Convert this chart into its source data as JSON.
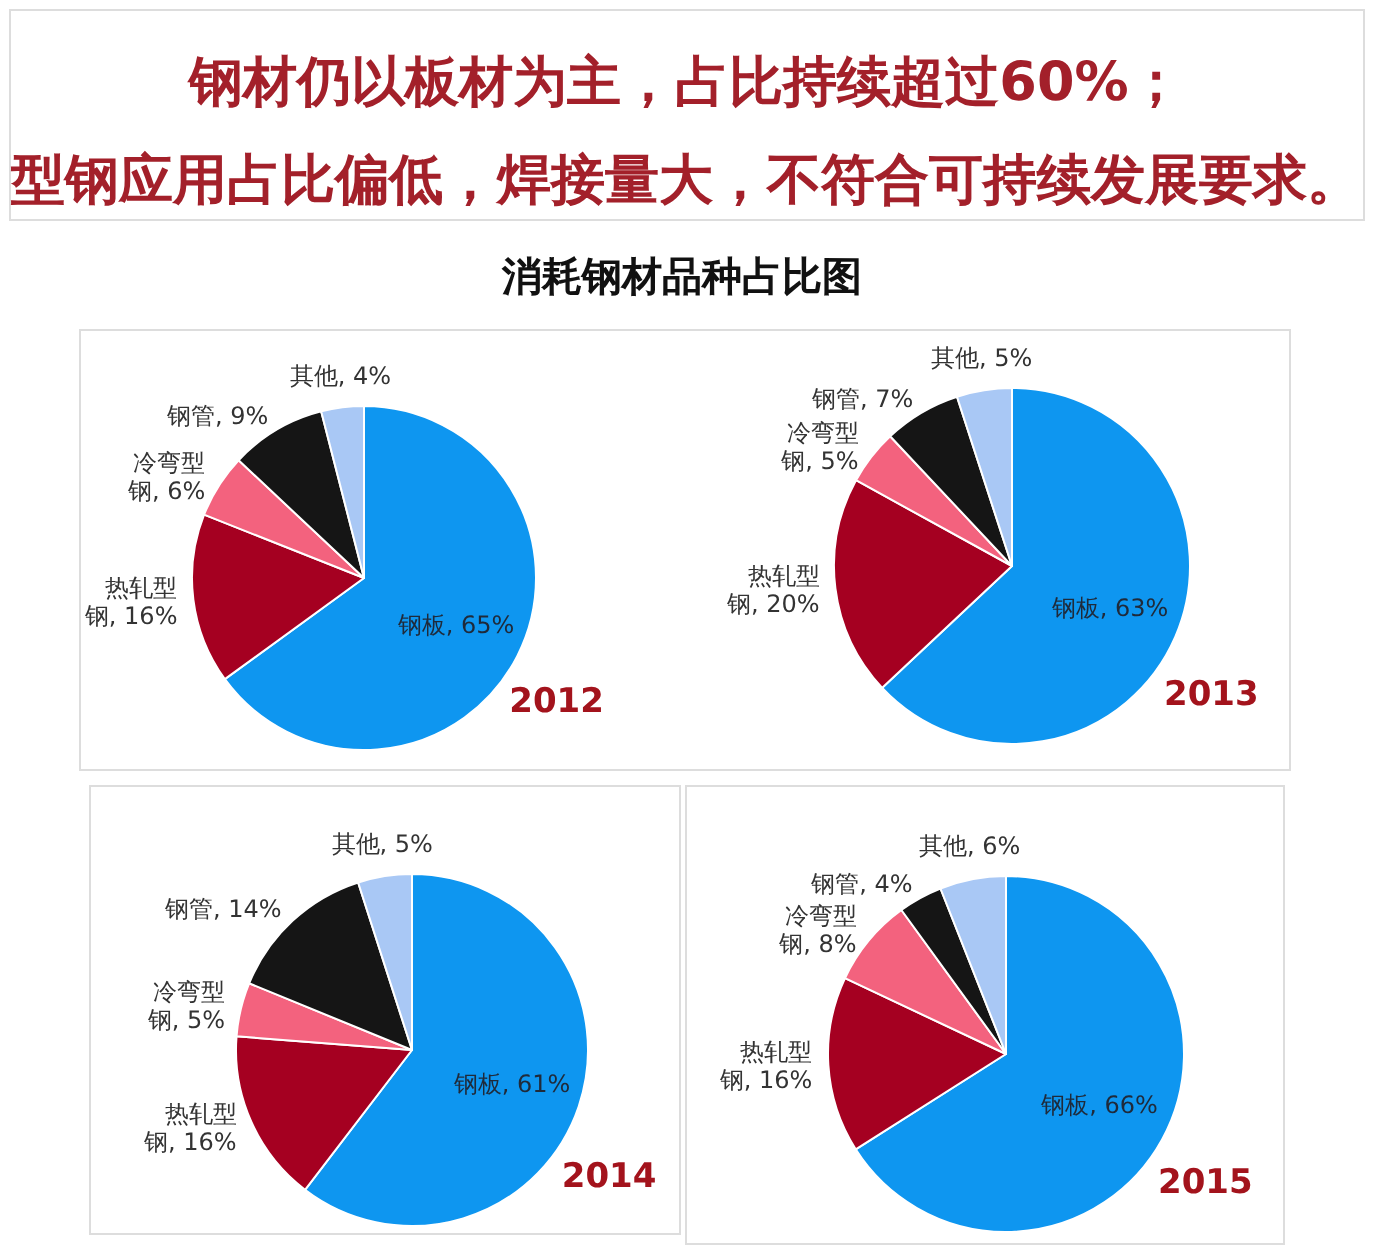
{
  "chart_data": [
    {
      "type": "other",
      "title": "消耗钢材品种占比图",
      "annotations": [
        "钢材仍以板材为主，占比持续超过60%；",
        "型钢应用占比偏低，焊接量大，不符合可持续发展要求。"
      ]
    },
    {
      "type": "pie",
      "title": "2012",
      "categories": [
        "钢板",
        "热轧型钢",
        "冷弯型钢",
        "钢管",
        "其他"
      ],
      "values": [
        65,
        16,
        6,
        9,
        4
      ],
      "value_labels": [
        "65%",
        "16%",
        "6%",
        "9%",
        "4%"
      ],
      "colors": [
        "#0e96f0",
        "#a50021",
        "#f3627e",
        "#151515",
        "#a9c8f5"
      ]
    },
    {
      "type": "pie",
      "title": "2013",
      "categories": [
        "钢板",
        "热轧型钢",
        "冷弯型钢",
        "钢管",
        "其他"
      ],
      "values": [
        63,
        20,
        5,
        7,
        5
      ],
      "value_labels": [
        "63%",
        "20%",
        "5%",
        "7%",
        "5%"
      ],
      "colors": [
        "#0e96f0",
        "#a50021",
        "#f3627e",
        "#151515",
        "#a9c8f5"
      ]
    },
    {
      "type": "pie",
      "title": "2014",
      "categories": [
        "钢板",
        "热轧型钢",
        "冷弯型钢",
        "钢管",
        "其他"
      ],
      "values": [
        61,
        16,
        5,
        14,
        5
      ],
      "value_labels": [
        "61%",
        "16%",
        "5%",
        "14%",
        "5%"
      ],
      "colors": [
        "#0e96f0",
        "#a50021",
        "#f3627e",
        "#151515",
        "#a9c8f5"
      ]
    },
    {
      "type": "pie",
      "title": "2015",
      "categories": [
        "钢板",
        "热轧型钢",
        "冷弯型钢",
        "钢管",
        "其他"
      ],
      "values": [
        66,
        16,
        8,
        4,
        6
      ],
      "value_labels": [
        "66%",
        "16%",
        "8%",
        "4%",
        "6%"
      ],
      "colors": [
        "#0e96f0",
        "#a50021",
        "#f3627e",
        "#151515",
        "#a9c8f5"
      ]
    }
  ]
}
